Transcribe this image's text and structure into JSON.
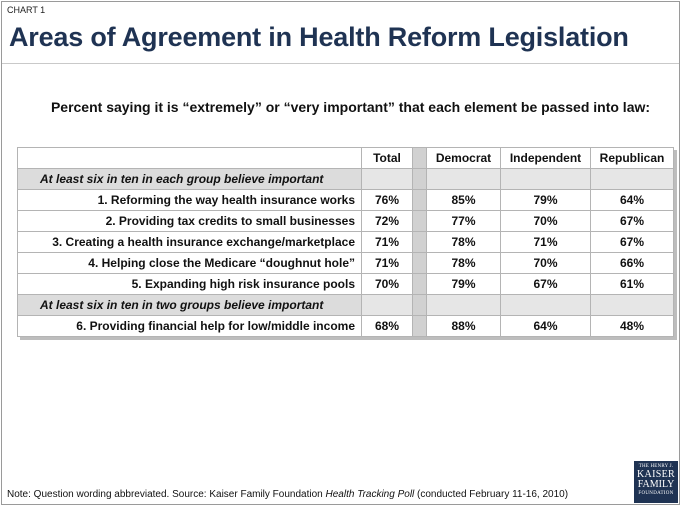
{
  "chart_label": "CHART 1",
  "title": "Areas of Agreement in Health Reform Legislation",
  "subtitle": "Percent saying it is “extremely” or “very important” that each element be passed into law:",
  "chart_data": {
    "type": "table",
    "columns": [
      "Total",
      "Democrat",
      "Independent",
      "Republican"
    ],
    "sections": [
      {
        "label": "At least six in ten in each group believe important",
        "rows": [
          {
            "item": "1. Reforming the way health insurance works",
            "values": [
              "76%",
              "85%",
              "79%",
              "64%"
            ]
          },
          {
            "item": "2. Providing tax credits to small businesses",
            "values": [
              "72%",
              "77%",
              "70%",
              "67%"
            ]
          },
          {
            "item": "3. Creating a health insurance exchange/marketplace",
            "values": [
              "71%",
              "78%",
              "71%",
              "67%"
            ]
          },
          {
            "item": "4. Helping close the Medicare “doughnut hole”",
            "values": [
              "71%",
              "78%",
              "70%",
              "66%"
            ]
          },
          {
            "item": "5. Expanding high risk insurance pools",
            "values": [
              "70%",
              "79%",
              "67%",
              "61%"
            ]
          }
        ]
      },
      {
        "label": "At least six in ten in two groups believe important",
        "rows": [
          {
            "item": "6. Providing financial help for low/middle income",
            "values": [
              "68%",
              "88%",
              "64%",
              "48%"
            ]
          }
        ]
      }
    ]
  },
  "footnote": {
    "prefix": "Note: Question wording abbreviated. Source: Kaiser Family Foundation ",
    "poll_name": "Health Tracking Poll",
    "suffix": " (conducted February 11-16, 2010)"
  },
  "logo": {
    "line1": "THE HENRY J.",
    "line2": "KAISER",
    "line3": "FAMILY",
    "line4": "FOUNDATION"
  }
}
